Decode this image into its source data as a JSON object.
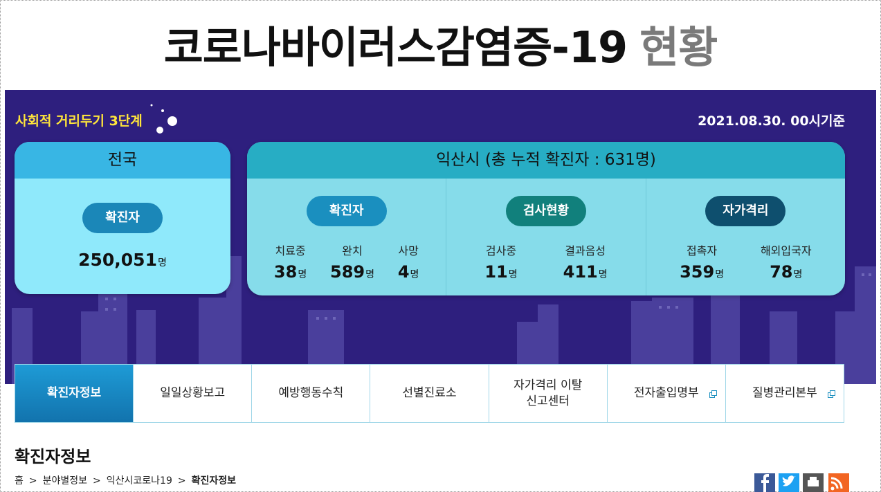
{
  "header": {
    "title": "코로나바이러스감염증-19",
    "title_suffix": "현황"
  },
  "banner": {
    "distancing_level": "사회적 거리두기 3단계",
    "as_of": "2021.08.30. 00시기준",
    "national": {
      "heading": "전국",
      "badge": "확진자",
      "value": "250,051",
      "unit": "명"
    },
    "iksan": {
      "heading": "익산시 (총 누적 확진자 : 631명)",
      "groups": [
        {
          "badge": "확진자",
          "items": [
            {
              "label": "치료중",
              "value": "38",
              "unit": "명"
            },
            {
              "label": "완치",
              "value": "589",
              "unit": "명"
            },
            {
              "label": "사망",
              "value": "4",
              "unit": "명"
            }
          ]
        },
        {
          "badge": "검사현황",
          "items": [
            {
              "label": "검사중",
              "value": "11",
              "unit": "명"
            },
            {
              "label": "결과음성",
              "value": "411",
              "unit": "명"
            }
          ]
        },
        {
          "badge": "자가격리",
          "items": [
            {
              "label": "접촉자",
              "value": "359",
              "unit": "명"
            },
            {
              "label": "해외입국자",
              "value": "78",
              "unit": "명"
            }
          ]
        }
      ]
    }
  },
  "tabs": [
    {
      "lines": [
        "확진자정보"
      ]
    },
    {
      "lines": [
        "일일상황보고"
      ]
    },
    {
      "lines": [
        "예방행동수칙"
      ]
    },
    {
      "lines": [
        "선별진료소"
      ]
    },
    {
      "lines": [
        "자가격리 이탈",
        "신고센터"
      ]
    },
    {
      "lines": [
        "전자출입명부"
      ]
    },
    {
      "lines": [
        "질병관리본부"
      ]
    }
  ],
  "page": {
    "heading": "확진자정보",
    "breadcrumb": [
      "홈",
      "분야별정보",
      "익산시코로나19",
      "확진자정보"
    ]
  }
}
